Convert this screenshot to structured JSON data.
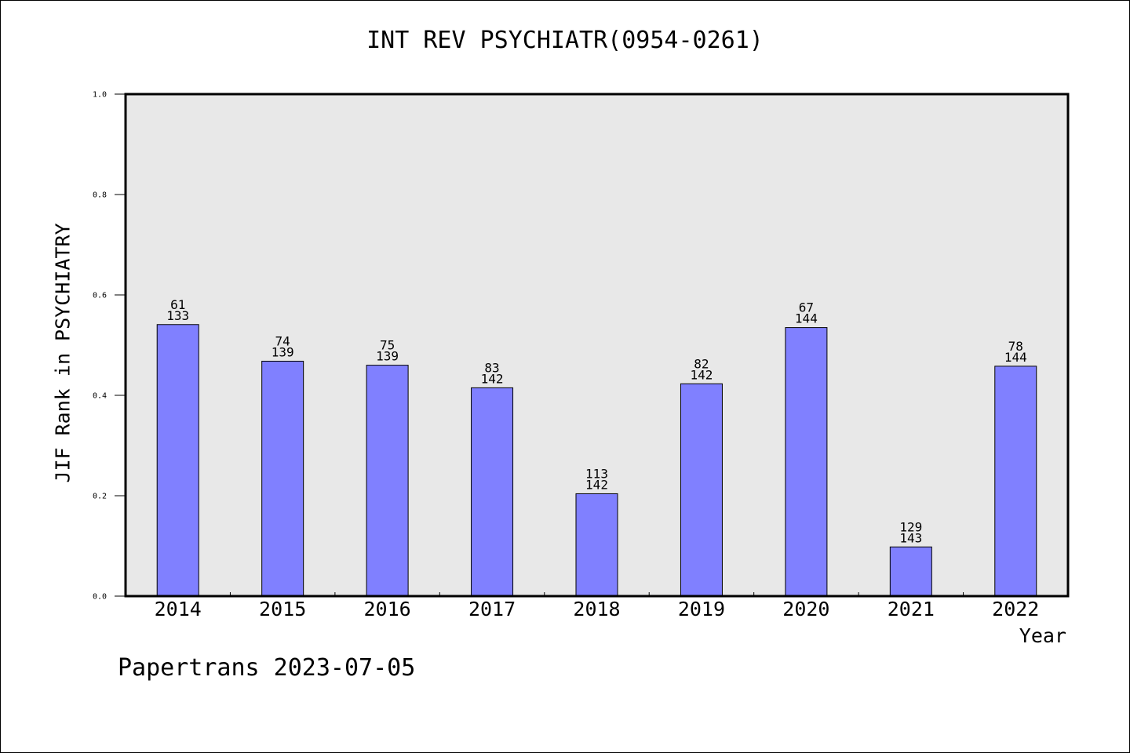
{
  "chart_data": {
    "type": "bar",
    "title": "INT REV PSYCHIATR(0954-0261)",
    "xlabel": "Year",
    "ylabel": "JIF Rank in PSYCHIATRY",
    "ylim": [
      0,
      1.0
    ],
    "yticks": [
      "0.0",
      "0.2",
      "0.4",
      "0.6",
      "0.8",
      "1.0"
    ],
    "categories": [
      "2014",
      "2015",
      "2016",
      "2017",
      "2018",
      "2019",
      "2020",
      "2021",
      "2022"
    ],
    "values": [
      0.541,
      0.468,
      0.46,
      0.415,
      0.204,
      0.423,
      0.535,
      0.098,
      0.458
    ],
    "labels_rank": [
      "61",
      "74",
      "75",
      "83",
      "113",
      "82",
      "67",
      "129",
      "78"
    ],
    "labels_total": [
      "133",
      "139",
      "139",
      "142",
      "142",
      "142",
      "144",
      "143",
      "144"
    ],
    "grid": false,
    "colors": {
      "bar": "#8080ff",
      "plot_bg": "#e8e8e8"
    }
  },
  "footer": "Papertrans 2023-07-05"
}
